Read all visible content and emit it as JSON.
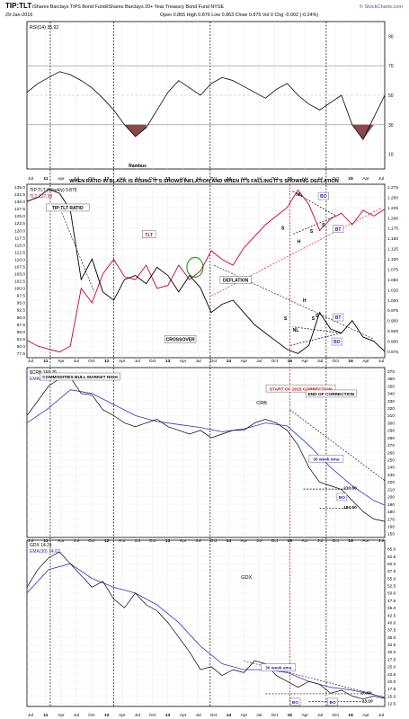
{
  "header": {
    "title": "TIP:TLT",
    "subtitle": "iShares Barclays TIPS Bond Fund/iShares Barclays 20+ Year Treasury Bond Fund NYSE",
    "date": "29-Jan-2016",
    "ohlc": "Open 0.865  High 0.876  Low 0.863  Close 0.875  Vol 0  Chg -0.002 (-0.24%)",
    "brand": "© StockCharts.com"
  },
  "banner": "WHEN RATIO IN BLACK IS RISING IT'S SHOWS INFLATION AND WHEN IT'S FALLING IT'S SHOWING DEFLATION",
  "x_axis": {
    "labels": [
      "Jul",
      "11",
      "Apr",
      "Jul",
      "Oct",
      "12",
      "Apr",
      "Jul",
      "Oct",
      "13",
      "Apr",
      "Jul",
      "Oct",
      "14",
      "Apr",
      "Jul",
      "Oct",
      "15",
      "Apr",
      "Jul",
      "Oct",
      "16",
      "Apr",
      "Jul"
    ],
    "bold": [
      "11",
      "12",
      "13",
      "14",
      "15",
      "16"
    ]
  },
  "colors": {
    "ratio": "#000000",
    "tlt": "#cc0033",
    "ema": "#3333cc",
    "annot": "#1a1acc",
    "redLine": "#dd0000",
    "rsiFill": "#8b4a4a"
  },
  "chart_data": [
    {
      "type": "line",
      "name": "rsi",
      "legend": "RSI(14) 35.92",
      "ylim": [
        0,
        100
      ],
      "ticks": [
        10,
        30,
        50,
        70,
        90
      ],
      "levels": [
        30,
        70
      ],
      "rambus": "Rambus",
      "x": [
        0,
        2,
        4,
        6,
        8,
        10,
        12,
        14,
        16,
        18,
        20,
        22,
        24,
        26,
        28,
        30,
        32,
        34,
        36,
        38,
        40,
        42,
        44,
        46,
        48,
        50,
        52,
        54,
        56,
        58,
        60,
        62,
        64,
        66
      ],
      "y": [
        52,
        58,
        62,
        66,
        64,
        60,
        55,
        48,
        40,
        30,
        22,
        28,
        40,
        52,
        60,
        55,
        50,
        58,
        62,
        60,
        56,
        52,
        48,
        54,
        58,
        50,
        44,
        40,
        45,
        50,
        30,
        20,
        35,
        50
      ]
    },
    {
      "type": "line",
      "name": "ratio",
      "legend": [
        "TIP:TLT (Weekly) 0.875",
        "TLT 127.38"
      ],
      "y_ticks_left": [
        77.5,
        80.0,
        82.5,
        85.0,
        87.5,
        90.0,
        92.5,
        95.0,
        97.5,
        100.0,
        102.5,
        105.0,
        107.5,
        110.0,
        112.5,
        115.0,
        117.5,
        120.0,
        122.5,
        125.0,
        127.5,
        130.0,
        132.5,
        135.0
      ],
      "y_ticks_right": [
        0.875,
        0.9,
        0.925,
        0.95,
        0.975,
        1.0,
        1.025,
        1.05,
        1.075,
        1.1,
        1.125,
        1.15,
        1.175,
        1.2,
        1.225,
        1.25,
        1.275
      ],
      "series": [
        {
          "name": "TIP:TLT",
          "x": [
            0,
            2,
            4,
            6,
            8,
            10,
            12,
            14,
            16,
            18,
            20,
            22,
            24,
            26,
            28,
            30,
            32,
            34,
            36,
            38,
            40,
            42,
            44,
            46,
            48,
            50,
            52,
            54,
            56,
            58,
            60,
            62,
            64,
            66
          ],
          "y": [
            1.24,
            1.25,
            1.27,
            1.26,
            1.22,
            1.05,
            1.1,
            1.02,
            1.0,
            1.05,
            1.06,
            1.04,
            1.08,
            1.06,
            1.02,
            1.06,
            1.03,
            0.97,
            0.99,
            1.0,
            0.97,
            0.94,
            0.92,
            0.9,
            0.88,
            0.87,
            0.89,
            0.97,
            0.93,
            0.92,
            0.95,
            0.91,
            0.9,
            0.875
          ]
        },
        {
          "name": "TLT",
          "x": [
            0,
            2,
            4,
            6,
            8,
            10,
            12,
            14,
            16,
            18,
            20,
            22,
            24,
            26,
            28,
            30,
            32,
            34,
            36,
            38,
            40,
            42,
            44,
            46,
            48,
            50,
            52,
            54,
            56,
            58,
            60,
            62,
            64,
            66
          ],
          "y": [
            82,
            80,
            79,
            78,
            80,
            100,
            95,
            105,
            110,
            104,
            103,
            108,
            100,
            101,
            108,
            103,
            106,
            113,
            110,
            108,
            114,
            118,
            122,
            125,
            128,
            134,
            129,
            120,
            124,
            126,
            122,
            127,
            125,
            127.38
          ]
        }
      ],
      "annotations": [
        {
          "text": "TIP:TLT RATIO",
          "x": 7.5,
          "y": 1.222
        },
        {
          "text": "TLT",
          "x": 22.5,
          "y": 1.157
        },
        {
          "text": "DEFLATION",
          "x": 38.5,
          "y": 1.046
        },
        {
          "text": "CROSSOVER",
          "x": 28.3,
          "y": 0.902
        },
        {
          "text": "NL",
          "x": 50.2,
          "y": 1.255
        },
        {
          "text": "S",
          "x": 47.2,
          "y": 1.173
        },
        {
          "text": "S",
          "x": 52.5,
          "y": 1.165
        },
        {
          "text": "S",
          "x": 54.7,
          "y": 1.18
        },
        {
          "text": "H",
          "x": 50.2,
          "y": 1.14
        },
        {
          "text": "BO",
          "x": 54.7,
          "y": 1.25
        },
        {
          "text": "BT",
          "x": 57.4,
          "y": 1.17
        },
        {
          "text": "H",
          "x": 51.2,
          "y": 0.997
        },
        {
          "text": "S",
          "x": 47.7,
          "y": 0.953
        },
        {
          "text": "S",
          "x": 52.8,
          "y": 0.953
        },
        {
          "text": "S",
          "x": 53.5,
          "y": 0.96
        },
        {
          "text": "NL",
          "x": 49.6,
          "y": 0.925
        },
        {
          "text": "BT",
          "x": 57.4,
          "y": 0.955
        },
        {
          "text": "BO",
          "x": 57.2,
          "y": 0.896
        }
      ]
    },
    {
      "type": "line",
      "name": "crb",
      "legend": [
        "$CRB 166.75",
        "EMA(30) 188.84"
      ],
      "title": "CRB",
      "ylim": [
        145,
        375
      ],
      "y_ticks": [
        150,
        160,
        170,
        180,
        190,
        200,
        210,
        220,
        230,
        240,
        250,
        260,
        270,
        280,
        290,
        300,
        310,
        320,
        330,
        340,
        350,
        360,
        370
      ],
      "series": [
        {
          "name": "$CRB",
          "x": [
            0,
            2,
            4,
            6,
            8,
            10,
            12,
            14,
            16,
            18,
            20,
            22,
            24,
            26,
            28,
            30,
            32,
            34,
            36,
            38,
            40,
            42,
            44,
            46,
            48,
            50,
            52,
            54,
            56,
            58,
            60,
            62,
            64,
            66
          ],
          "y": [
            310,
            330,
            350,
            360,
            362,
            340,
            338,
            318,
            310,
            300,
            295,
            300,
            305,
            295,
            290,
            285,
            290,
            280,
            285,
            290,
            290,
            300,
            305,
            300,
            290,
            270,
            240,
            220,
            215,
            210,
            195,
            180,
            170,
            166.75
          ]
        },
        {
          "name": "EMA(30)",
          "x": [
            0,
            4,
            8,
            12,
            16,
            20,
            24,
            28,
            32,
            36,
            40,
            44,
            48,
            52,
            56,
            60,
            64,
            66
          ],
          "y": [
            300,
            320,
            345,
            340,
            325,
            310,
            302,
            298,
            294,
            288,
            292,
            300,
            296,
            270,
            240,
            215,
            195,
            188.84
          ]
        }
      ],
      "annotations": [
        {
          "text": "COMMODITIES BULL MARKET HIGH",
          "x": 9.8,
          "y": 361
        },
        {
          "text": "START OF 2015 CORRECTION",
          "x": 50.5,
          "y": 345
        },
        {
          "text": "END OF CORRECTION",
          "x": 56.1,
          "y": 338
        },
        {
          "text": "30 week ema",
          "x": 55.2,
          "y": 250
        },
        {
          "text": "210.60",
          "x": 59.6,
          "y": 210.6
        },
        {
          "text": "184.60",
          "x": 59.6,
          "y": 184.6
        },
        {
          "text": "BO",
          "x": 58.1,
          "y": 198
        }
      ]
    },
    {
      "type": "line",
      "name": "gdx",
      "legend": [
        "GDX 14.21",
        "EMA(30) 14.63"
      ],
      "title": "GDX",
      "ylim": [
        11.5,
        68
      ],
      "y_ticks": [
        12.5,
        15.0,
        17.5,
        20.0,
        22.5,
        25.0,
        27.5,
        30.0,
        32.5,
        35.0,
        37.5,
        40.0,
        42.5,
        45.0,
        47.5,
        50.0,
        52.5,
        55.0,
        57.5,
        60.0,
        62.5,
        65.0
      ],
      "series": [
        {
          "name": "GDX",
          "x": [
            0,
            2,
            4,
            6,
            8,
            10,
            12,
            14,
            16,
            18,
            20,
            22,
            24,
            26,
            28,
            30,
            32,
            34,
            36,
            38,
            40,
            42,
            44,
            46,
            48,
            50,
            52,
            54,
            56,
            58,
            60,
            62,
            64,
            66
          ],
          "y": [
            52,
            58,
            62,
            64,
            60,
            56,
            52,
            54,
            48,
            45,
            50,
            46,
            44,
            40,
            35,
            30,
            24,
            25,
            22,
            24,
            23,
            27,
            26,
            22,
            20,
            18,
            20,
            19,
            16,
            17,
            15,
            14,
            15,
            14.21
          ]
        },
        {
          "name": "EMA(30)",
          "x": [
            0,
            4,
            8,
            12,
            16,
            20,
            24,
            28,
            32,
            36,
            40,
            44,
            48,
            52,
            56,
            60,
            64,
            66
          ],
          "y": [
            50,
            58,
            60,
            55,
            52,
            50,
            46,
            40,
            32,
            26,
            24,
            24,
            23,
            20,
            18,
            17,
            15.5,
            14.63
          ]
        }
      ],
      "annotations": [
        {
          "text": "30 week ema",
          "x": 46.4,
          "y": 24.3
        },
        {
          "text": "BO",
          "x": 49.5,
          "y": 12.6
        },
        {
          "text": "BO",
          "x": 56.4,
          "y": 12.6
        },
        {
          "text": "15.80",
          "x": 62.6,
          "y": 15.8
        },
        {
          "text": "13.10",
          "x": 62.8,
          "y": 13.1
        }
      ]
    }
  ]
}
